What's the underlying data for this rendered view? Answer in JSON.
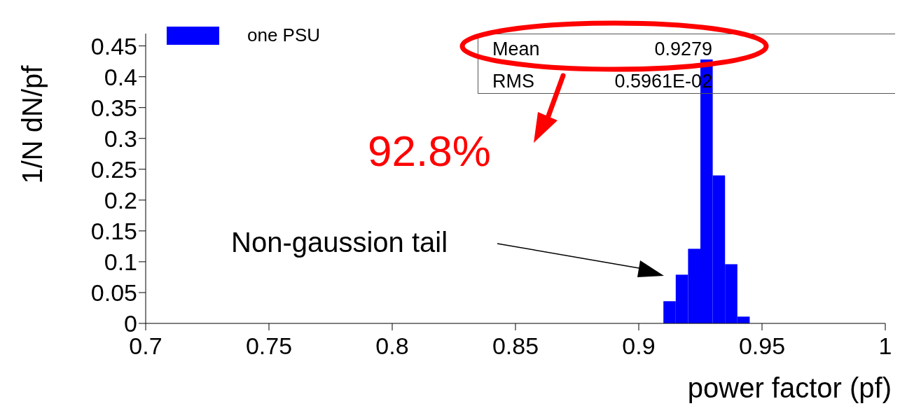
{
  "chart_data": {
    "type": "histogram",
    "xlabel": "power factor (pf)",
    "ylabel": "1/N dN/pf",
    "bins": [
      0.91,
      0.915,
      0.92,
      0.925,
      0.93,
      0.935,
      0.94,
      0.945
    ],
    "series": [
      {
        "name": "one PSU",
        "color": "#0000ff",
        "values": [
          0.036,
          0.079,
          0.121,
          0.428,
          0.24,
          0.096,
          0.011
        ]
      }
    ],
    "xlim": [
      0.7,
      1.0
    ],
    "xticks": [
      0.7,
      0.75,
      0.8,
      0.85,
      0.9,
      0.95,
      1
    ],
    "ylim": [
      0,
      0.47
    ],
    "yticks": [
      0,
      0.05,
      0.1,
      0.15,
      0.2,
      0.25,
      0.3,
      0.35,
      0.4,
      0.45
    ],
    "grid": false,
    "legend": "top left",
    "annotations": [
      "Mean",
      "0.9279",
      "RMS",
      "0.5961E-02",
      "92.8%",
      "Non-gaussion tail"
    ]
  }
}
